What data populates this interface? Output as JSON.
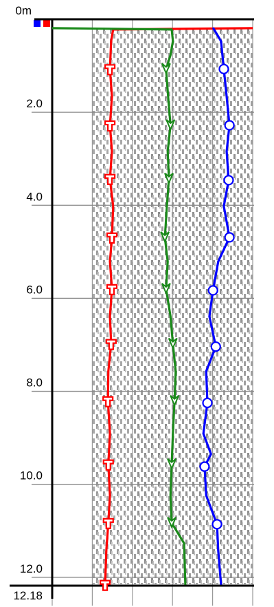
{
  "chart_data": {
    "type": "log",
    "ylim": [
      0,
      12.18
    ],
    "xlim": [
      0,
      5
    ],
    "yticks": [
      {
        "value": 0,
        "label": "0m"
      },
      {
        "value": 2,
        "label": "2.0"
      },
      {
        "value": 4,
        "label": "4.0"
      },
      {
        "value": 6,
        "label": "6.0"
      },
      {
        "value": 8,
        "label": "8.0"
      },
      {
        "value": 10,
        "label": "10.0"
      },
      {
        "value": 12,
        "label": "12.0"
      },
      12.18
    ],
    "grid": true,
    "series": [
      {
        "color": "#ff0000",
        "marker": "tee",
        "values": [
          5.0,
          1.52,
          1.47,
          1.44,
          1.49,
          1.44,
          1.49,
          1.44,
          1.52,
          1.49,
          1.44,
          1.49,
          1.44,
          1.47,
          1.4,
          1.39,
          1.44,
          1.4,
          1.44,
          1.4,
          1.35,
          1.32
        ],
        "depths": [
          0.19,
          0.22,
          0.47,
          1.07,
          1.66,
          2.28,
          2.84,
          3.43,
          4.02,
          4.69,
          5.21,
          5.8,
          6.39,
          6.98,
          7.57,
          8.21,
          8.91,
          9.57,
          10.24,
          10.83,
          11.42,
          12.16
        ],
        "marker_values": [
          1.44,
          1.44,
          1.44,
          1.49,
          1.49,
          1.47,
          1.39,
          1.4,
          1.4,
          1.32
        ],
        "marker_depths": [
          1.07,
          2.28,
          3.43,
          4.69,
          5.8,
          6.98,
          8.21,
          9.57,
          10.83,
          12.16
        ]
      },
      {
        "color": "#1a8a1a",
        "marker": "arrow",
        "values": [
          0,
          2.98,
          3.01,
          2.95,
          2.84,
          2.89,
          2.95,
          2.88,
          2.91,
          2.86,
          2.81,
          2.88,
          2.84,
          2.95,
          3.01,
          3.08,
          3.05,
          3.01,
          2.98,
          2.95,
          2.98,
          3.29,
          3.32
        ],
        "depths": [
          0.19,
          0.22,
          0.47,
          0.77,
          1.07,
          1.66,
          2.28,
          2.84,
          3.43,
          4.02,
          4.69,
          5.21,
          5.8,
          6.39,
          6.98,
          7.57,
          8.21,
          8.91,
          9.57,
          10.24,
          10.83,
          11.27,
          12.16
        ],
        "marker_values": [
          2.84,
          2.95,
          2.91,
          2.81,
          2.84,
          3.01,
          3.05,
          2.98,
          2.98
        ],
        "marker_depths": [
          1.07,
          2.28,
          3.43,
          4.69,
          5.8,
          6.98,
          8.21,
          9.57,
          10.83
        ]
      },
      {
        "color": "#0000ff",
        "marker": "circle",
        "values": [
          4.01,
          4.21,
          4.28,
          4.35,
          4.42,
          4.35,
          4.4,
          4.28,
          4.42,
          4.14,
          4.01,
          3.92,
          4.08,
          3.84,
          3.87,
          3.77,
          3.96,
          3.8,
          3.84,
          4.11,
          4.14,
          4.21
        ],
        "depths": [
          0.18,
          0.47,
          1.07,
          1.66,
          2.28,
          2.84,
          3.46,
          4.02,
          4.69,
          5.21,
          5.83,
          6.39,
          7.04,
          7.57,
          8.25,
          8.91,
          9.35,
          9.62,
          10.24,
          10.86,
          11.42,
          12.16
        ],
        "marker_values": [
          4.28,
          4.42,
          4.4,
          4.42,
          4.01,
          4.08,
          3.87,
          3.8,
          4.11
        ],
        "marker_depths": [
          1.07,
          2.28,
          3.46,
          4.69,
          5.83,
          7.04,
          8.25,
          9.62,
          10.86
        ]
      }
    ]
  }
}
